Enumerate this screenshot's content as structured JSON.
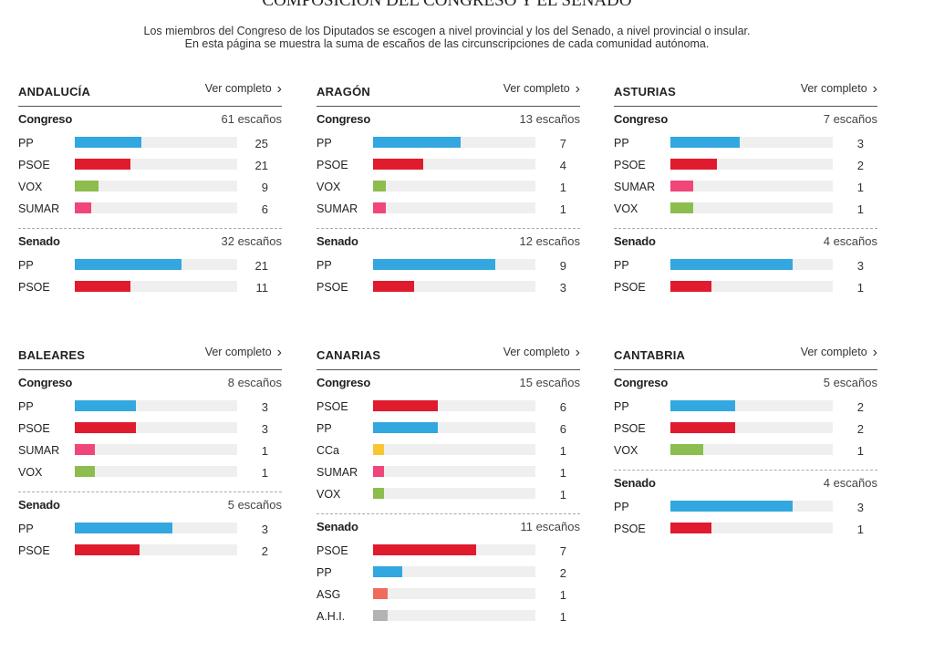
{
  "page": {
    "title": "COMPOSICIÓN DEL CONGRESO Y EL SENADO",
    "intro_line1": "Los miembros del Congreso de los Diputados se escogen a nivel provincial y los del Senado, a nivel provincial o insular.",
    "intro_line2": "En esta página se muestra la suma de escaños de las circunscripciones de cada comunidad autónoma."
  },
  "colors": {
    "PP": "#33a7df",
    "PSOE": "#e01b2e",
    "VOX": "#8cbd4e",
    "SUMAR": "#f0467a",
    "CCa": "#f7c732",
    "ASG": "#f06b5c",
    "A.H.I.": "#b3b3b3"
  },
  "communities": [
    {
      "name": "ANDALUCÍA",
      "link": "Ver completo",
      "congreso": {
        "label": "Congreso",
        "seats_label": "61 escaños",
        "total": 61,
        "parties": [
          {
            "name": "PP",
            "seats": 25
          },
          {
            "name": "PSOE",
            "seats": 21
          },
          {
            "name": "VOX",
            "seats": 9
          },
          {
            "name": "SUMAR",
            "seats": 6
          }
        ]
      },
      "senado": {
        "label": "Senado",
        "seats_label": "32 escaños",
        "total": 32,
        "parties": [
          {
            "name": "PP",
            "seats": 21
          },
          {
            "name": "PSOE",
            "seats": 11
          }
        ]
      }
    },
    {
      "name": "ARAGÓN",
      "link": "Ver completo",
      "congreso": {
        "label": "Congreso",
        "seats_label": "13 escaños",
        "total": 13,
        "parties": [
          {
            "name": "PP",
            "seats": 7
          },
          {
            "name": "PSOE",
            "seats": 4
          },
          {
            "name": "VOX",
            "seats": 1
          },
          {
            "name": "SUMAR",
            "seats": 1
          }
        ]
      },
      "senado": {
        "label": "Senado",
        "seats_label": "12 escaños",
        "total": 12,
        "parties": [
          {
            "name": "PP",
            "seats": 9
          },
          {
            "name": "PSOE",
            "seats": 3
          }
        ]
      }
    },
    {
      "name": "ASTURIAS",
      "link": "Ver completo",
      "congreso": {
        "label": "Congreso",
        "seats_label": "7 escaños",
        "total": 7,
        "parties": [
          {
            "name": "PP",
            "seats": 3
          },
          {
            "name": "PSOE",
            "seats": 2
          },
          {
            "name": "SUMAR",
            "seats": 1
          },
          {
            "name": "VOX",
            "seats": 1
          }
        ]
      },
      "senado": {
        "label": "Senado",
        "seats_label": "4 escaños",
        "total": 4,
        "parties": [
          {
            "name": "PP",
            "seats": 3
          },
          {
            "name": "PSOE",
            "seats": 1
          }
        ]
      }
    },
    {
      "name": "BALEARES",
      "link": "Ver completo",
      "congreso": {
        "label": "Congreso",
        "seats_label": "8 escaños",
        "total": 8,
        "parties": [
          {
            "name": "PP",
            "seats": 3
          },
          {
            "name": "PSOE",
            "seats": 3
          },
          {
            "name": "SUMAR",
            "seats": 1
          },
          {
            "name": "VOX",
            "seats": 1
          }
        ]
      },
      "senado": {
        "label": "Senado",
        "seats_label": "5 escaños",
        "total": 5,
        "parties": [
          {
            "name": "PP",
            "seats": 3
          },
          {
            "name": "PSOE",
            "seats": 2
          }
        ]
      }
    },
    {
      "name": "CANARIAS",
      "link": "Ver completo",
      "congreso": {
        "label": "Congreso",
        "seats_label": "15 escaños",
        "total": 15,
        "parties": [
          {
            "name": "PSOE",
            "seats": 6
          },
          {
            "name": "PP",
            "seats": 6
          },
          {
            "name": "CCa",
            "seats": 1
          },
          {
            "name": "SUMAR",
            "seats": 1
          },
          {
            "name": "VOX",
            "seats": 1
          }
        ]
      },
      "senado": {
        "label": "Senado",
        "seats_label": "11 escaños",
        "total": 11,
        "parties": [
          {
            "name": "PSOE",
            "seats": 7
          },
          {
            "name": "PP",
            "seats": 2
          },
          {
            "name": "ASG",
            "seats": 1
          },
          {
            "name": "A.H.I.",
            "seats": 1
          }
        ]
      }
    },
    {
      "name": "CANTABRIA",
      "link": "Ver completo",
      "congreso": {
        "label": "Congreso",
        "seats_label": "5 escaños",
        "total": 5,
        "parties": [
          {
            "name": "PP",
            "seats": 2
          },
          {
            "name": "PSOE",
            "seats": 2
          },
          {
            "name": "VOX",
            "seats": 1
          }
        ]
      },
      "senado": {
        "label": "Senado",
        "seats_label": "4 escaños",
        "total": 4,
        "parties": [
          {
            "name": "PP",
            "seats": 3
          },
          {
            "name": "PSOE",
            "seats": 1
          }
        ]
      }
    }
  ]
}
